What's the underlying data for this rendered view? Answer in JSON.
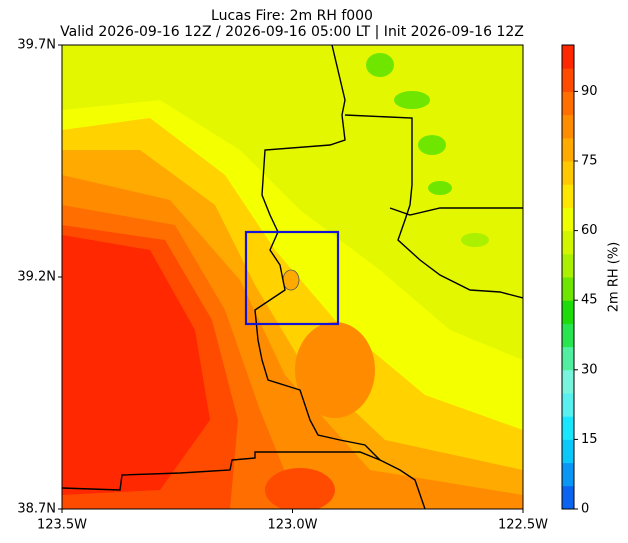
{
  "chart_data": {
    "type": "map",
    "title": "Lucas Fire: 2m RH f000",
    "subtitle": "Valid 2026-09-16 12Z / 2026-09-16 05:00 LT | Init 2026-09-16 12Z",
    "xlim": [
      -123.5,
      -122.5
    ],
    "ylim": [
      38.7,
      39.7
    ],
    "xticks": [
      {
        "value": -123.5,
        "label": "123.5W"
      },
      {
        "value": -123.0,
        "label": "123.0W"
      },
      {
        "value": -122.5,
        "label": "122.5W"
      }
    ],
    "yticks": [
      {
        "value": 38.7,
        "label": "38.7N"
      },
      {
        "value": 39.2,
        "label": "39.2N"
      },
      {
        "value": 39.7,
        "label": "39.7N"
      }
    ],
    "colorbar_label": "2m RH (%)",
    "clim": [
      0,
      100
    ],
    "cticks": [
      0,
      15,
      30,
      45,
      60,
      75,
      90
    ],
    "colors": [
      "#0a64f0",
      "#0a96f5",
      "#0ac8fa",
      "#19e6ff",
      "#5af0f0",
      "#78f5dc",
      "#50f0a0",
      "#28e650",
      "#1edc0a",
      "#6ee600",
      "#aaf000",
      "#d2f500",
      "#eeff00",
      "#ffe600",
      "#ffc800",
      "#ffaa00",
      "#ff8c00",
      "#ff6e00",
      "#ff4b00",
      "#ff2800"
    ]
  }
}
